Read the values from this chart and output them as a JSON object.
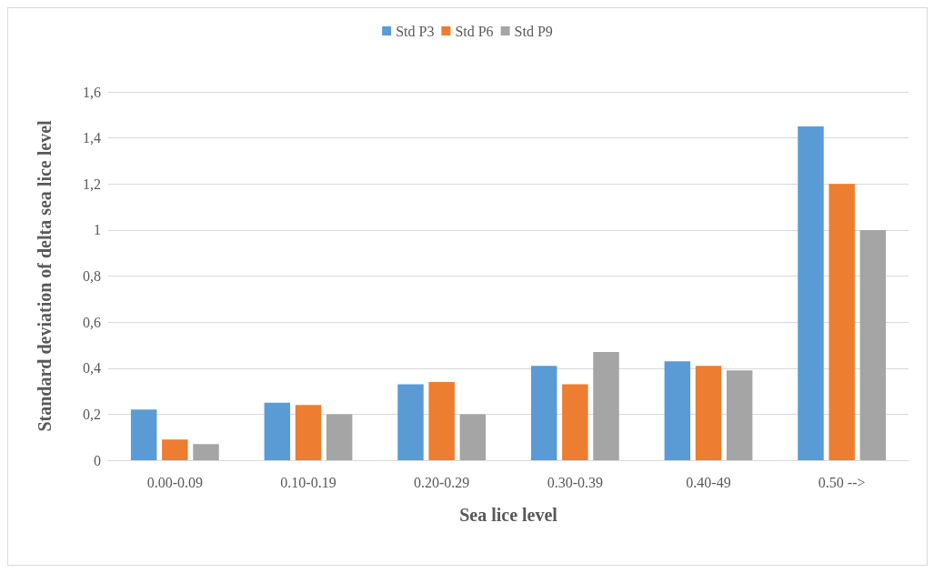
{
  "chart_data": {
    "type": "bar",
    "xlabel": "Sea lice level",
    "ylabel": "Standard deviation of delta sea lice level",
    "categories": [
      "0.00-0.09",
      "0.10-0.19",
      "0.20-0.29",
      "0.30-0.39",
      "0.40-49",
      "0.50 -->"
    ],
    "series": [
      {
        "name": "Std P3",
        "color": "#5b9bd5",
        "values": [
          0.22,
          0.25,
          0.33,
          0.41,
          0.43,
          1.45
        ]
      },
      {
        "name": "Std P6",
        "color": "#ed7d31",
        "values": [
          0.09,
          0.24,
          0.34,
          0.33,
          0.41,
          1.2
        ]
      },
      {
        "name": "Std P9",
        "color": "#a5a5a5",
        "values": [
          0.07,
          0.2,
          0.2,
          0.47,
          0.39,
          1.0
        ]
      }
    ],
    "ylim": [
      0,
      1.6
    ],
    "yticks": [
      0,
      {
        "value": 0.2,
        "label": "0,2"
      },
      {
        "value": 0.4,
        "label": "0,4"
      },
      {
        "value": 0.6,
        "label": "0,6"
      },
      {
        "value": 0.8,
        "label": "0,8"
      },
      1,
      {
        "value": 1.2,
        "label": "1,2"
      },
      {
        "value": 1.4,
        "label": "1,4"
      },
      {
        "value": 1.6,
        "label": "1,6"
      }
    ],
    "grid": "y",
    "legend": "top"
  }
}
